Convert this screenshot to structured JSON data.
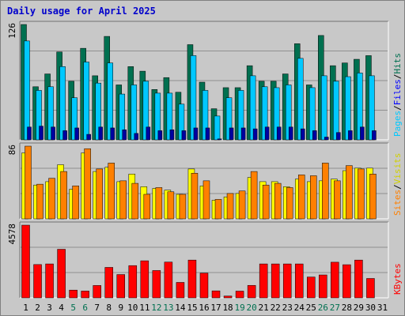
{
  "title": "Daily usage for April 2025",
  "colors": {
    "hits": "#007050",
    "files": "#00c8ff",
    "pages": "#0000a0",
    "visits": "#ffff00",
    "sites": "#ff8000",
    "kbytes": "#ff0000",
    "weekend_label": "#007050",
    "weekday_label": "#000000",
    "panel_bg": "#c8c8c8",
    "grid": "#909090"
  },
  "chart_data": [
    {
      "type": "bar",
      "name": "hits-files-pages",
      "scale_label": "126",
      "ylim": [
        0,
        126
      ],
      "legend": {
        "hits": "Hits",
        "files": "Files",
        "pages": "Pages",
        "sep": "/"
      },
      "categories": [
        "1",
        "2",
        "3",
        "4",
        "5",
        "6",
        "7",
        "8",
        "9",
        "10",
        "11",
        "12",
        "13",
        "14",
        "15",
        "16",
        "17",
        "18",
        "19",
        "20",
        "21",
        "22",
        "23",
        "24",
        "25",
        "26",
        "27",
        "28",
        "29",
        "30",
        "31"
      ],
      "series": [
        {
          "name": "Hits",
          "values": [
            126,
            58,
            72,
            96,
            64,
            100,
            70,
            113,
            60,
            80,
            75,
            55,
            68,
            52,
            104,
            63,
            34,
            57,
            57,
            81,
            64,
            64,
            72,
            105,
            60,
            114,
            81,
            84,
            88,
            92,
            0
          ]
        },
        {
          "name": "Files",
          "values": [
            108,
            54,
            58,
            80,
            46,
            85,
            62,
            84,
            50,
            60,
            64,
            51,
            51,
            39,
            92,
            54,
            26,
            46,
            54,
            70,
            58,
            57,
            60,
            89,
            57,
            70,
            64,
            69,
            73,
            70,
            0
          ]
        },
        {
          "name": "Pages",
          "values": [
            14,
            15,
            14,
            10,
            13,
            6,
            14,
            13,
            11,
            7,
            14,
            10,
            11,
            10,
            13,
            13,
            1,
            13,
            13,
            12,
            14,
            14,
            14,
            12,
            10,
            3,
            8,
            10,
            14,
            10,
            0
          ]
        }
      ]
    },
    {
      "type": "bar",
      "name": "visits-sites",
      "scale_label": "86",
      "ylim": [
        0,
        86
      ],
      "legend": {
        "visits": "Visits",
        "sites": "Sites",
        "sep": "/"
      },
      "categories": [
        "1",
        "2",
        "3",
        "4",
        "5",
        "6",
        "7",
        "8",
        "9",
        "10",
        "11",
        "12",
        "13",
        "14",
        "15",
        "16",
        "17",
        "18",
        "19",
        "20",
        "21",
        "22",
        "23",
        "24",
        "25",
        "26",
        "27",
        "28",
        "29",
        "30",
        "31"
      ],
      "series": [
        {
          "name": "Visits",
          "values": [
            78,
            40,
            44,
            64,
            35,
            78,
            56,
            61,
            44,
            53,
            38,
            36,
            34,
            29,
            59,
            39,
            22,
            26,
            30,
            49,
            44,
            44,
            38,
            47,
            44,
            45,
            47,
            57,
            60,
            60,
            0
          ]
        },
        {
          "name": "Sites",
          "values": [
            86,
            41,
            48,
            56,
            39,
            83,
            59,
            66,
            45,
            42,
            29,
            37,
            32,
            29,
            54,
            45,
            23,
            30,
            33,
            56,
            40,
            42,
            37,
            52,
            51,
            66,
            45,
            63,
            59,
            53,
            0
          ]
        }
      ]
    },
    {
      "type": "bar",
      "name": "kbytes",
      "scale_label": "4578",
      "ylim": [
        0,
        4578
      ],
      "legend": {
        "kbytes": "KBytes"
      },
      "categories": [
        "1",
        "2",
        "3",
        "4",
        "5",
        "6",
        "7",
        "8",
        "9",
        "10",
        "11",
        "12",
        "13",
        "14",
        "15",
        "16",
        "17",
        "18",
        "19",
        "20",
        "21",
        "22",
        "23",
        "24",
        "25",
        "26",
        "27",
        "28",
        "29",
        "30",
        "31"
      ],
      "series": [
        {
          "name": "KBytes",
          "values": [
            4578,
            2097,
            2136,
            3060,
            488,
            427,
            778,
            1918,
            1467,
            2031,
            2334,
            1720,
            2253,
            972,
            2380,
            1560,
            440,
            113,
            424,
            785,
            2136,
            2136,
            2136,
            2136,
            1312,
            1442,
            2244,
            2087,
            2380,
            1220,
            0
          ]
        }
      ]
    }
  ],
  "weekend_days": [
    5,
    6,
    12,
    13,
    19,
    20,
    26,
    27
  ]
}
